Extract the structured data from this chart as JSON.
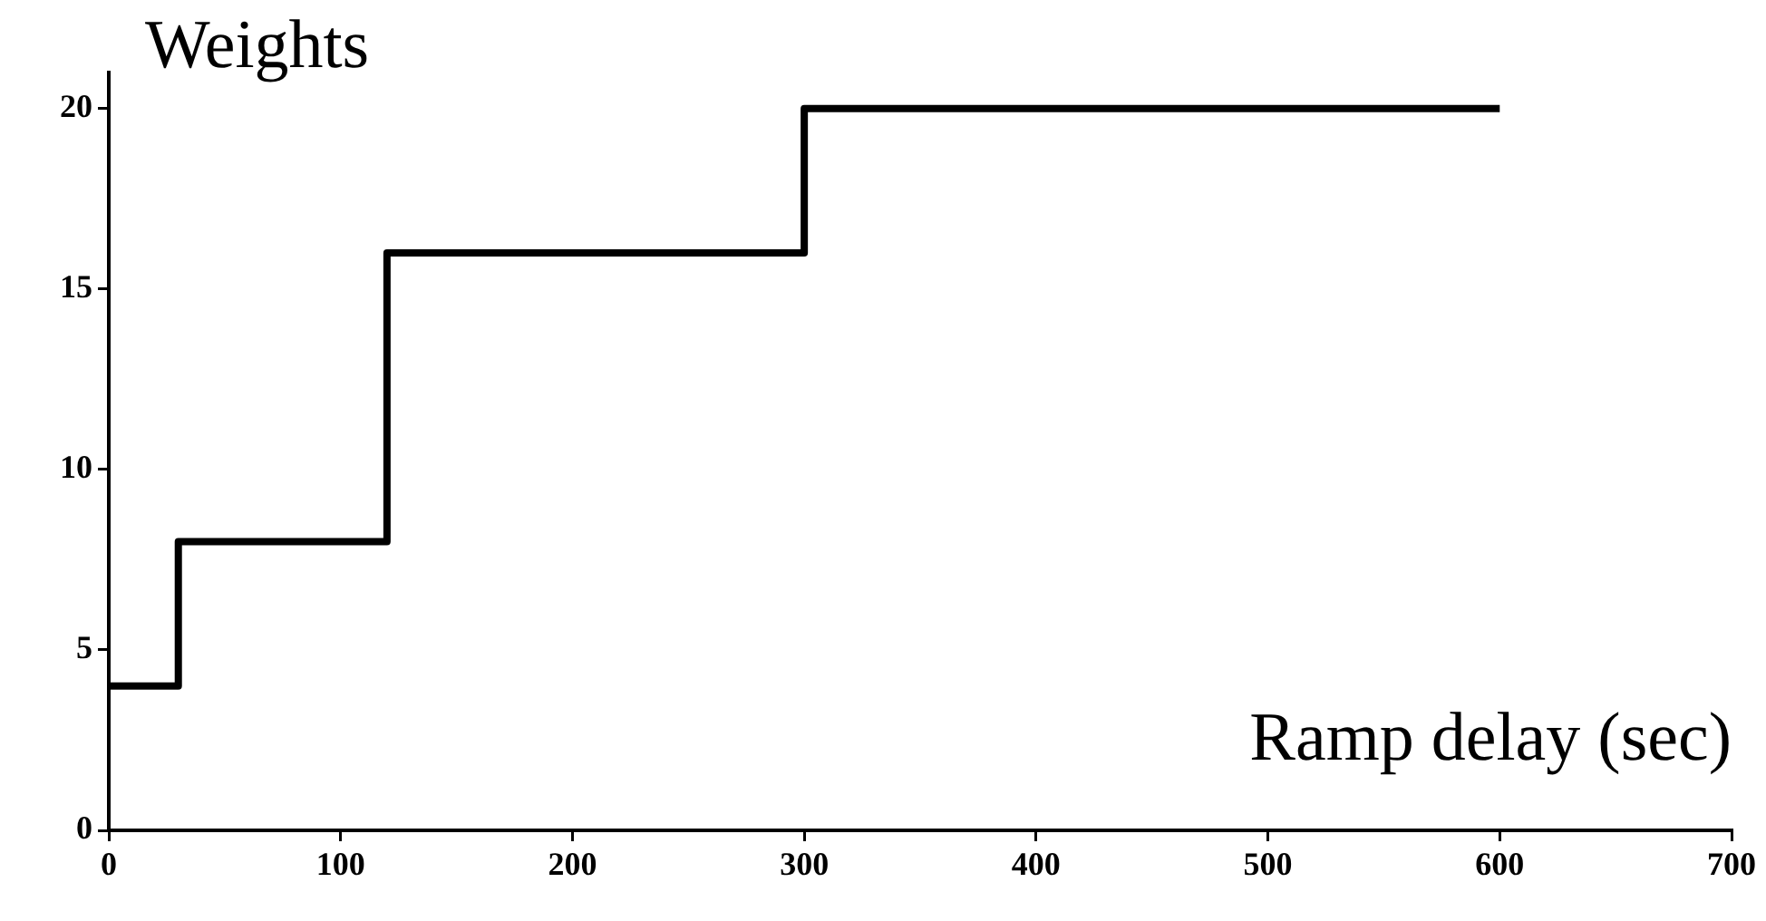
{
  "chart_data": {
    "type": "step",
    "xlabel": "Ramp delay (sec)",
    "ylabel": "Weights",
    "x": [
      0,
      30,
      120,
      300,
      600
    ],
    "series": [
      {
        "color": "#000000",
        "values": [
          4,
          8,
          16,
          20,
          20
        ]
      }
    ],
    "xlim": [
      0,
      700
    ],
    "xticks": [
      0,
      100,
      200,
      300,
      400,
      500,
      600,
      700
    ],
    "ylim": [
      0,
      21
    ],
    "yticks": [
      0,
      5,
      10,
      15,
      20
    ],
    "grid": false,
    "legend": false,
    "marker": "none",
    "line_style": "solid"
  }
}
